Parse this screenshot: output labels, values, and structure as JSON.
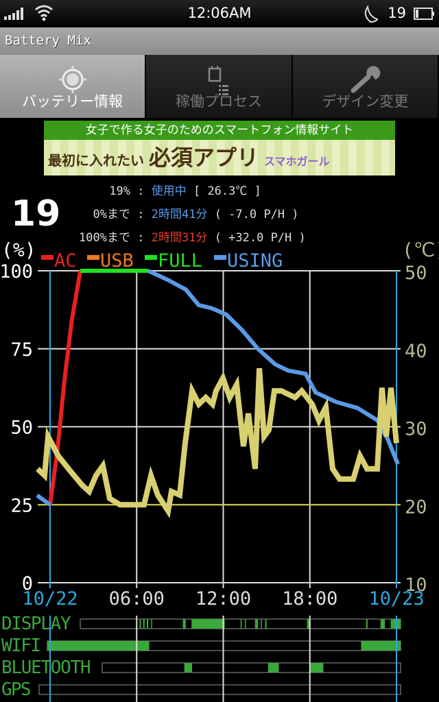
{
  "status_bar": {
    "time": "12:06AM",
    "battery_level": "19",
    "icons": [
      "signal-icon",
      "wifi-icon",
      "moon-icon",
      "battery-icon"
    ]
  },
  "app": {
    "title": "Battery Mix"
  },
  "tabs": [
    {
      "label": "バッテリー情報",
      "icon": "target-icon",
      "active": true
    },
    {
      "label": "稼働プロセス",
      "icon": "process-list-icon",
      "active": false
    },
    {
      "label": "デザイン変更",
      "icon": "wrench-icon",
      "active": false
    }
  ],
  "ad": {
    "top": "女子で作る女子のためのスマートフォン情報サイト",
    "main_a": "最初に入れたい",
    "main_b": "必須アプリ",
    "logo": "スマホガール"
  },
  "info": {
    "level_big": "19",
    "rows": [
      {
        "key": "19%",
        "value": "使用中",
        "extra": "[ 26.3℃ ]"
      },
      {
        "key": "0%まで",
        "value": "2時間41分",
        "extra": "( -7.0 P/H )"
      },
      {
        "key": "100%まで",
        "value": "2時間31分",
        "extra": "( +32.0 P/H )"
      }
    ]
  },
  "chart_data": {
    "type": "line",
    "y_label": "(%)",
    "y2_label": "(℃)",
    "ylim": [
      0,
      100
    ],
    "y2lim": [
      10,
      50
    ],
    "y_ticks": [
      "100",
      "75",
      "50",
      "25",
      "0"
    ],
    "y2_ticks": [
      "50",
      "40",
      "30",
      "20",
      "10"
    ],
    "x_ticks": [
      {
        "label": "10/22",
        "hour": 0,
        "color": "#2aa8e0"
      },
      {
        "label": "06:00",
        "hour": 6,
        "color": "#dddddd"
      },
      {
        "label": "12:00",
        "hour": 12,
        "color": "#dddddd"
      },
      {
        "label": "18:00",
        "hour": 18,
        "color": "#dddddd"
      },
      {
        "label": "10/23",
        "hour": 24,
        "color": "#2aa8e0"
      }
    ],
    "legend": [
      {
        "name": "AC",
        "color": "#e82020"
      },
      {
        "name": "USB",
        "color": "#f07820"
      },
      {
        "name": "FULL",
        "color": "#20e020"
      },
      {
        "name": "USING",
        "color": "#5a9ae6"
      }
    ],
    "reference_line": {
      "value_percent": 25,
      "color": "#c8c840"
    },
    "series": [
      {
        "name": "AC",
        "color": "#e82020",
        "points": [
          [
            0,
            25
          ],
          [
            0.5,
            42
          ],
          [
            1,
            65
          ],
          [
            1.5,
            84
          ],
          [
            2.1,
            100
          ]
        ]
      },
      {
        "name": "FULL",
        "color": "#20e020",
        "points": [
          [
            2.1,
            100
          ],
          [
            6.8,
            100
          ]
        ]
      },
      {
        "name": "USING",
        "color": "#5a9ae6",
        "points": [
          [
            -0.9,
            28
          ],
          [
            0,
            25
          ],
          [
            0,
            25
          ]
        ]
      },
      {
        "name": "USING",
        "color": "#5a9ae6",
        "points": [
          [
            6.8,
            100
          ],
          [
            8.2,
            97
          ],
          [
            9.4,
            94
          ],
          [
            10.3,
            89
          ],
          [
            11.2,
            88
          ],
          [
            12.2,
            86
          ],
          [
            13.3,
            81
          ],
          [
            14.4,
            75
          ],
          [
            15.6,
            70
          ],
          [
            16.5,
            68
          ],
          [
            17.7,
            67
          ],
          [
            18.4,
            61
          ],
          [
            19.8,
            58
          ],
          [
            21.3,
            56
          ],
          [
            22.7,
            52
          ],
          [
            23.4,
            46
          ],
          [
            24.1,
            38
          ]
        ]
      },
      {
        "name": "temperature",
        "color": "#d8d070",
        "axis": "right",
        "points": [
          [
            -0.86,
            24.6
          ],
          [
            -0.38,
            23.75
          ],
          [
            -0.14,
            28.75
          ],
          [
            0.1,
            27.9
          ],
          [
            0.57,
            26.25
          ],
          [
            1.28,
            24.6
          ],
          [
            2.23,
            22.5
          ],
          [
            2.71,
            21.7
          ],
          [
            3.18,
            23.75
          ],
          [
            3.66,
            25
          ],
          [
            4.13,
            20.8
          ],
          [
            4.85,
            20
          ],
          [
            6.51,
            20
          ],
          [
            6.99,
            23.75
          ],
          [
            7.46,
            21.25
          ],
          [
            8.18,
            19.2
          ],
          [
            8.41,
            21.7
          ],
          [
            8.98,
            21.25
          ],
          [
            9.36,
            27.9
          ],
          [
            9.84,
            34.6
          ],
          [
            10.31,
            32.9
          ],
          [
            10.79,
            33.75
          ],
          [
            11.26,
            32.9
          ],
          [
            11.5,
            34.6
          ],
          [
            11.98,
            36.25
          ],
          [
            12.45,
            33.75
          ],
          [
            12.93,
            35.4
          ],
          [
            13.4,
            27.5
          ],
          [
            13.74,
            31.7
          ],
          [
            14.21,
            24.6
          ],
          [
            14.5,
            37.5
          ],
          [
            14.83,
            28.75
          ],
          [
            15.16,
            29.6
          ],
          [
            15.54,
            34.6
          ],
          [
            16.02,
            34.6
          ],
          [
            16.97,
            33.75
          ],
          [
            17.44,
            34.6
          ],
          [
            18.16,
            32.9
          ],
          [
            18.63,
            30.8
          ],
          [
            19.11,
            32.5
          ],
          [
            19.58,
            24.6
          ],
          [
            20.06,
            23.3
          ],
          [
            21.01,
            23.3
          ],
          [
            21.48,
            26.25
          ],
          [
            21.96,
            24.6
          ],
          [
            22.67,
            24.6
          ],
          [
            23.0,
            35
          ],
          [
            23.29,
            28.75
          ],
          [
            23.62,
            35
          ],
          [
            24.0,
            27.9
          ]
        ]
      }
    ],
    "activity": [
      {
        "label": "DISPLAY",
        "segments": [
          [
            6.2,
            6.3
          ],
          [
            6.45,
            6.55
          ],
          [
            6.7,
            6.8
          ],
          [
            7.0,
            7.05
          ],
          [
            9.2,
            9.4
          ],
          [
            9.8,
            12.1
          ],
          [
            13.2,
            13.25
          ],
          [
            13.5,
            13.55
          ],
          [
            14.2,
            14.4
          ],
          [
            14.6,
            14.65
          ],
          [
            14.9,
            15.0
          ],
          [
            17.8,
            18.0
          ],
          [
            21.9,
            22.0
          ],
          [
            22.9,
            23.2
          ],
          [
            23.6,
            24.3
          ]
        ]
      },
      {
        "label": "WIFI",
        "segments": [
          [
            -0.2,
            6.87
          ],
          [
            21.55,
            24.3
          ]
        ]
      },
      {
        "label": "BLUETOOTH",
        "segments": [
          [
            9.3,
            9.84
          ],
          [
            15.1,
            15.85
          ],
          [
            18.0,
            18.94
          ]
        ]
      },
      {
        "label": "GPS",
        "segments": []
      }
    ],
    "activity_color": "#3aa83a"
  }
}
